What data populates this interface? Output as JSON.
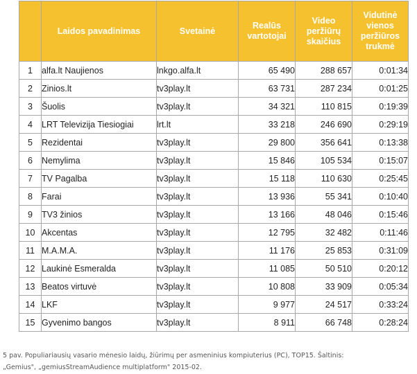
{
  "table": {
    "headers": {
      "rank": "",
      "name": "Laidos pavadinimas",
      "site": "Svetainė",
      "users": "Realūs vartotojai",
      "views": "Video peržiūrų skaičius",
      "duration": "Vidutinė vienos peržiūros trukmė"
    },
    "rows": [
      {
        "rank": "1",
        "name": "alfa.lt Naujienos",
        "site": "lnkgo.alfa.lt",
        "users": "65 490",
        "views": "288 657",
        "duration": "0:01:34"
      },
      {
        "rank": "2",
        "name": "Zinios.lt",
        "site": "tv3play.lt",
        "users": "63 731",
        "views": "287 234",
        "duration": "0:01:25"
      },
      {
        "rank": "3",
        "name": "Šuolis",
        "site": "tv3play.lt",
        "users": "34 321",
        "views": "110 815",
        "duration": "0:19:39"
      },
      {
        "rank": "4",
        "name": "LRT Televizija Tiesiogiai",
        "site": "lrt.lt",
        "users": "33 218",
        "views": "246 690",
        "duration": "0:29:19"
      },
      {
        "rank": "5",
        "name": "Rezidentai",
        "site": "tv3play.lt",
        "users": "29 800",
        "views": "356 641",
        "duration": "0:13:38"
      },
      {
        "rank": "6",
        "name": "Nemylima",
        "site": "tv3play.lt",
        "users": "15 846",
        "views": "105 534",
        "duration": "0:15:07"
      },
      {
        "rank": "7",
        "name": "TV Pagalba",
        "site": "tv3play.lt",
        "users": "15 118",
        "views": "110 630",
        "duration": "0:25:45"
      },
      {
        "rank": "8",
        "name": "Farai",
        "site": "tv3play.lt",
        "users": "13 936",
        "views": "55 341",
        "duration": "0:10:40"
      },
      {
        "rank": "9",
        "name": "TV3 žinios",
        "site": "tv3play.lt",
        "users": "13 166",
        "views": "48 046",
        "duration": "0:15:46"
      },
      {
        "rank": "10",
        "name": "Akcentas",
        "site": "tv3play.lt",
        "users": "12 795",
        "views": "32 482",
        "duration": "0:11:46"
      },
      {
        "rank": "11",
        "name": "M.A.M.A.",
        "site": "tv3play.lt",
        "users": "11 176",
        "views": "25 853",
        "duration": "0:31:09"
      },
      {
        "rank": "12",
        "name": "Laukinė Esmeralda",
        "site": "tv3play.lt",
        "users": "11 085",
        "views": "50 510",
        "duration": "0:20:12"
      },
      {
        "rank": "13",
        "name": "Beatos virtuvė",
        "site": "tv3play.lt",
        "users": "10 808",
        "views": "33 909",
        "duration": "0:05:34"
      },
      {
        "rank": "14",
        "name": "LKF",
        "site": "tv3play.lt",
        "users": "9 977",
        "views": "24 517",
        "duration": "0:33:24"
      },
      {
        "rank": "15",
        "name": "Gyvenimo bangos",
        "site": "tv3play.lt",
        "users": "8 911",
        "views": "66 748",
        "duration": "0:28:24"
      }
    ]
  },
  "caption": {
    "line1": "5 pav. Populiariausių vasario mėnesio laidų, žiūrimų per asmeninius kompiuterius (PC), TOP15. Šaltinis:",
    "line2": "„Gemius\", „gemiusStreamAudience multiplatform\" 2015-02."
  },
  "colors": {
    "header_background": "#f6c12e",
    "header_text": "#ffffff",
    "border": "#a7a7a7"
  }
}
